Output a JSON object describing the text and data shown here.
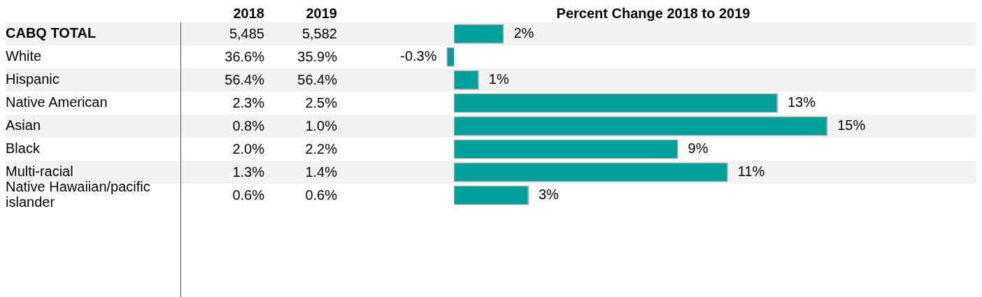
{
  "chart_data": [
    {
      "type": "other",
      "categories": [
        "2018",
        "2019"
      ],
      "cell_labels": [
        [
          "5,485",
          "5,582"
        ],
        [
          "36.6%",
          "35.9%"
        ],
        [
          "56.4%",
          "56.4%"
        ],
        [
          "2.3%",
          "2.5%"
        ],
        [
          "0.8%",
          "1.0%"
        ],
        [
          "2.0%",
          "2.2%"
        ],
        [
          "1.3%",
          "1.4%"
        ],
        [
          "0.6%",
          "0.6%"
        ]
      ]
    },
    {
      "type": "bar",
      "orientation": "horizontal",
      "title": "Percent Change 2018 to 2019",
      "categories": [
        "CABQ TOTAL",
        "White",
        "Hispanic",
        "Native American",
        "Asian",
        "Black",
        "Multi-racial",
        "Native Hawaiian/pacific islander"
      ],
      "values": [
        2,
        -0.3,
        1,
        13,
        15,
        9,
        11,
        3
      ],
      "value_labels": [
        "2%",
        "-0.3%",
        "1%",
        "13%",
        "15%",
        "9%",
        "11%",
        "3%"
      ],
      "data_labels": true,
      "color": "#00a19a",
      "tick_labels": "y"
    }
  ]
}
